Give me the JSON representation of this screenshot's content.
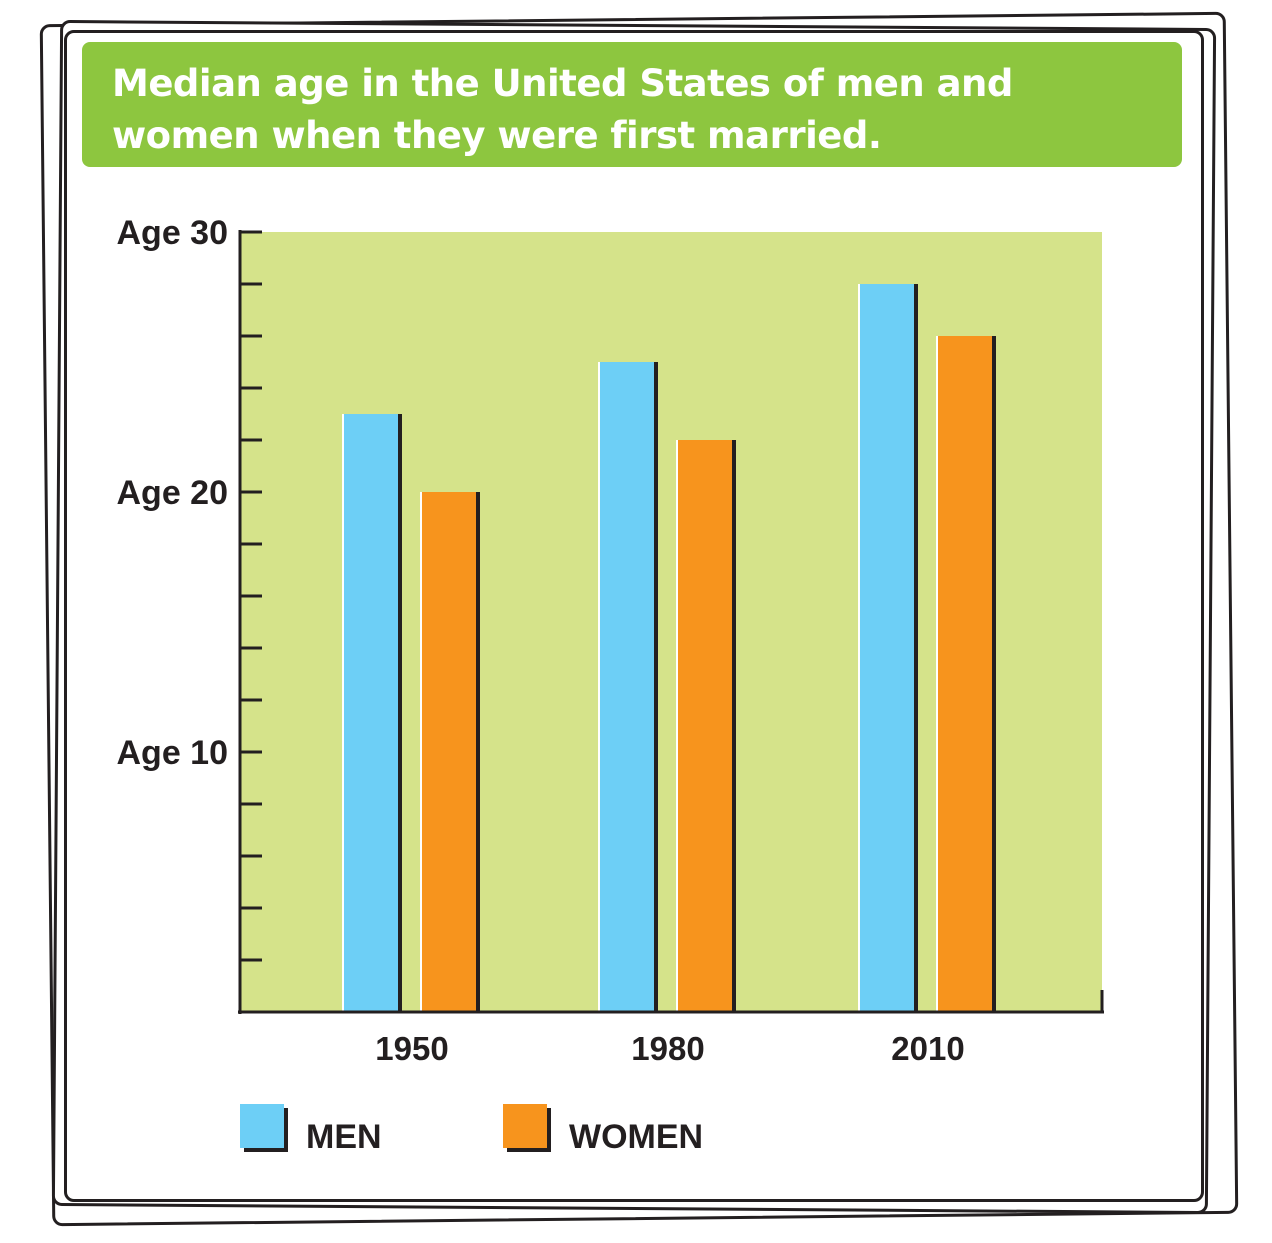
{
  "chart_data": {
    "type": "bar",
    "title": "Median age in the United States of men and women when they were first married.",
    "categories": [
      "1950",
      "1980",
      "2010"
    ],
    "series": [
      {
        "name": "MEN",
        "values": [
          23,
          25,
          28
        ],
        "color": "#6dcff6"
      },
      {
        "name": "WOMEN",
        "values": [
          20,
          22,
          26
        ],
        "color": "#f7941d"
      }
    ],
    "ylim": [
      0,
      30
    ],
    "yticks": [
      {
        "value": 10,
        "label": "Age 10"
      },
      {
        "value": 20,
        "label": "Age 20"
      },
      {
        "value": 30,
        "label": "Age 30"
      }
    ],
    "minor_tick_step": 2,
    "grid": false,
    "legend_position": "bottom-left",
    "plot_background": "#d5e38a",
    "title_background": "#8dc63f"
  }
}
